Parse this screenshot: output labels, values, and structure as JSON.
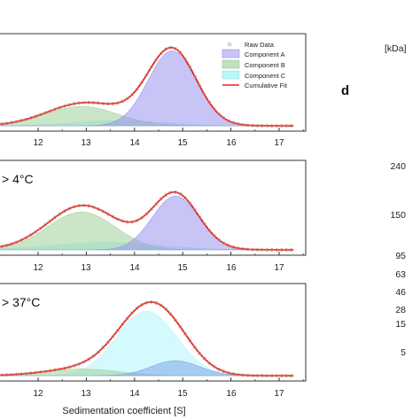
{
  "chart_data": [
    {
      "type": "area",
      "panel": "top",
      "condition_label": "",
      "x_ticks": [
        "12",
        "13",
        "14",
        "15",
        "16",
        "17"
      ],
      "xlim": [
        11.0,
        17.3
      ],
      "ylim": [
        0,
        1.12
      ],
      "legend": {
        "placement": "top-right",
        "entries": [
          "Raw Data",
          "Component A",
          "Component B",
          "Component C",
          "Cumulative Fit"
        ]
      },
      "series": [
        {
          "name": "Component A",
          "gaussian": {
            "center": 14.78,
            "amplitude": 1.0,
            "sigma": 0.5
          }
        },
        {
          "name": "Component B",
          "gaussian": {
            "center": 12.9,
            "amplitude": 0.26,
            "sigma": 0.75
          }
        },
        {
          "name": "Component C",
          "gaussian": {
            "center": 13.7,
            "amplitude": 0.07,
            "sigma": 0.9
          }
        }
      ]
    },
    {
      "type": "area",
      "panel": "middle",
      "condition_label": "> 4°C",
      "x_ticks": [
        "12",
        "13",
        "14",
        "15",
        "16",
        "17"
      ],
      "xlim": [
        11.0,
        17.3
      ],
      "ylim": [
        0,
        1.12
      ],
      "series": [
        {
          "name": "Component A",
          "gaussian": {
            "center": 14.85,
            "amplitude": 0.74,
            "sigma": 0.48
          }
        },
        {
          "name": "Component B",
          "gaussian": {
            "center": 12.9,
            "amplitude": 0.52,
            "sigma": 0.7
          }
        },
        {
          "name": "Component C",
          "gaussian": {
            "center": 13.4,
            "amplitude": 0.1,
            "sigma": 1.1
          }
        }
      ]
    },
    {
      "type": "area",
      "panel": "bottom",
      "condition_label": "> 37°C",
      "x_ticks": [
        "12",
        "13",
        "14",
        "15",
        "16",
        "17"
      ],
      "xlim": [
        11.0,
        17.3
      ],
      "ylim": [
        0,
        1.12
      ],
      "xlabel": "Sedimentation coefficient [S]",
      "series": [
        {
          "name": "Component A",
          "gaussian": {
            "center": 14.85,
            "amplitude": 0.2,
            "sigma": 0.5
          }
        },
        {
          "name": "Component B",
          "gaussian": {
            "center": 12.9,
            "amplitude": 0.09,
            "sigma": 0.75
          }
        },
        {
          "name": "Component C",
          "gaussian": {
            "center": 14.25,
            "amplitude": 0.86,
            "sigma": 0.62
          }
        }
      ]
    }
  ],
  "gel": {
    "unit_label": "[kDa]",
    "panel_label": "d",
    "markers": [
      "240",
      "150",
      "95",
      "63",
      "46",
      "28",
      "15",
      "5"
    ]
  },
  "colors": {
    "component_a": "#9a96ee",
    "component_b": "#a6d4a2",
    "component_c": "#9cf1f6",
    "component_c_bottom": "#b9f6fb",
    "component_a_bottom": "#7fa6e6",
    "fit": "#e0242a",
    "raw": "#c9a58c"
  }
}
